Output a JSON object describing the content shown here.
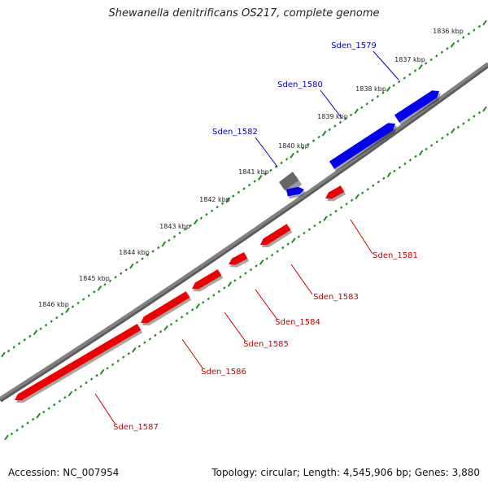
{
  "title": "Shewanella denitrificans OS217, complete genome",
  "footer": {
    "accession": "Accession: NC_007954",
    "summary": "Topology: circular; Length: 4,545,906 bp; Genes: 3,880"
  },
  "colors": {
    "backbone": "#808080",
    "forward_gene": "#0000ee",
    "reverse_gene": "#ee0000",
    "selected_gene": "#666666",
    "tick_marks": "#228b22",
    "forward_label": "#0000cc",
    "reverse_label": "#cc0000"
  },
  "kbp_labels": [
    "1836 kbp",
    "1837 kbp",
    "1838 kbp",
    "1839 kbp",
    "1840 kbp",
    "1841 kbp",
    "1842 kbp",
    "1843 kbp",
    "1844 kbp",
    "1845 kbp",
    "1846 kbp"
  ],
  "genes": [
    {
      "name": "Sden_1579",
      "strand": "forward",
      "label": "Sden_1579"
    },
    {
      "name": "Sden_1580",
      "strand": "forward",
      "label": "Sden_1580"
    },
    {
      "name": "Sden_1582",
      "strand": "forward",
      "label": "Sden_1582"
    },
    {
      "name": "Sden_1581",
      "strand": "reverse",
      "label": "Sden_1581"
    },
    {
      "name": "Sden_1583",
      "strand": "reverse",
      "label": "Sden_1583"
    },
    {
      "name": "Sden_1584",
      "strand": "reverse",
      "label": "Sden_1584"
    },
    {
      "name": "Sden_1585",
      "strand": "reverse",
      "label": "Sden_1585"
    },
    {
      "name": "Sden_1586",
      "strand": "reverse",
      "label": "Sden_1586"
    },
    {
      "name": "Sden_1587",
      "strand": "reverse",
      "label": "Sden_1587"
    }
  ]
}
